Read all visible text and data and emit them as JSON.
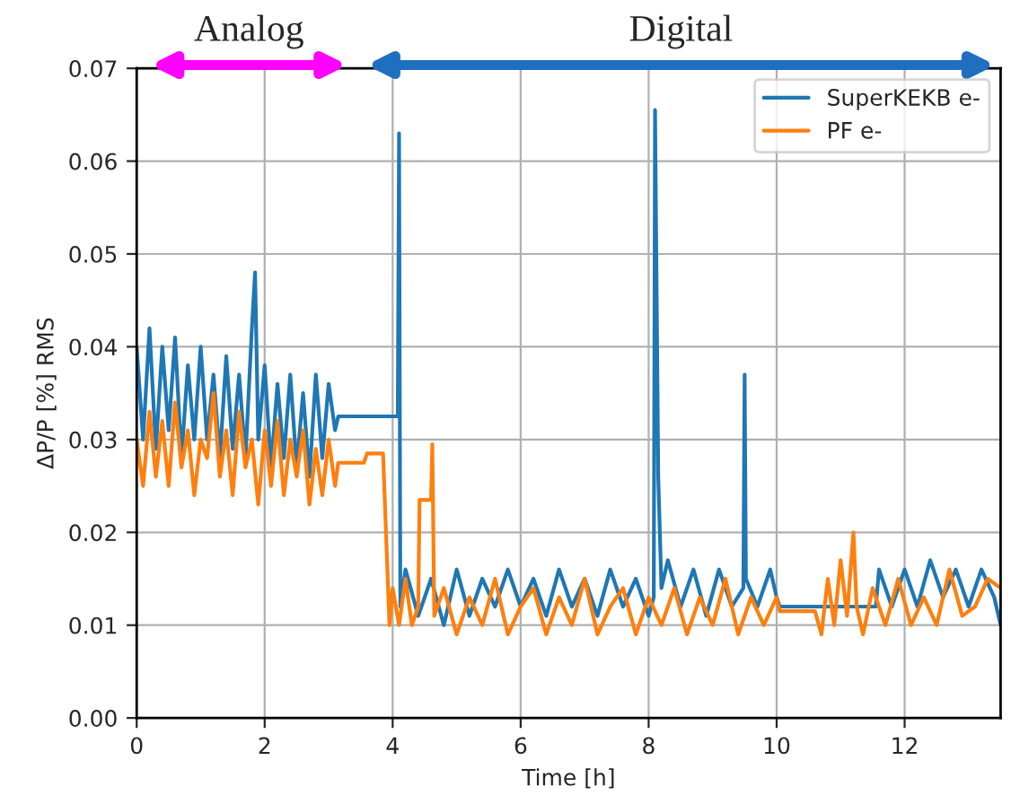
{
  "chart_data": {
    "type": "line",
    "xlabel": "Time [h]",
    "ylabel": "ΔP/P [%] RMS",
    "annotations": [
      "Analog",
      "Digital"
    ],
    "xlim": [
      0,
      13.5
    ],
    "xticks": [
      0,
      2,
      4,
      6,
      8,
      10,
      12
    ],
    "ylim": [
      0,
      0.07
    ],
    "yticks": [
      {
        "value": 0,
        "label": "0.00"
      },
      {
        "value": 0.01,
        "label": "0.01"
      },
      {
        "value": 0.02,
        "label": "0.02"
      },
      {
        "value": 0.03,
        "label": "0.03"
      },
      {
        "value": 0.04,
        "label": "0.04"
      },
      {
        "value": 0.05,
        "label": "0.05"
      },
      {
        "value": 0.06,
        "label": "0.06"
      },
      {
        "value": 0.07,
        "label": "0.07"
      }
    ],
    "grid": true,
    "legend": "top right",
    "series": [
      {
        "name": "SuperKEKB e-",
        "color": "#1f77b4",
        "x": [
          0,
          0.1,
          0.2,
          0.3,
          0.4,
          0.5,
          0.6,
          0.7,
          0.8,
          0.9,
          1.0,
          1.1,
          1.2,
          1.3,
          1.4,
          1.5,
          1.6,
          1.7,
          1.8,
          1.85,
          1.9,
          2.0,
          2.1,
          2.2,
          2.3,
          2.4,
          2.5,
          2.6,
          2.7,
          2.8,
          2.9,
          3.0,
          3.1,
          3.15,
          4.08,
          4.1,
          4.12,
          4.2,
          4.4,
          4.6,
          4.8,
          5.0,
          5.2,
          5.4,
          5.6,
          5.8,
          6.0,
          6.2,
          6.4,
          6.6,
          6.8,
          7.0,
          7.2,
          7.4,
          7.6,
          7.8,
          8.0,
          8.08,
          8.1,
          8.15,
          8.2,
          8.3,
          8.5,
          8.7,
          8.9,
          9.1,
          9.3,
          9.48,
          9.5,
          9.52,
          9.7,
          9.9,
          10.0,
          10.05,
          11.55,
          11.6,
          11.8,
          12.0,
          12.2,
          12.4,
          12.6,
          12.8,
          13.0,
          13.2,
          13.4,
          13.5
        ],
        "values": [
          0.04,
          0.03,
          0.042,
          0.029,
          0.04,
          0.031,
          0.041,
          0.028,
          0.038,
          0.03,
          0.04,
          0.03,
          0.037,
          0.028,
          0.039,
          0.029,
          0.037,
          0.028,
          0.042,
          0.048,
          0.03,
          0.038,
          0.027,
          0.036,
          0.028,
          0.037,
          0.027,
          0.035,
          0.026,
          0.037,
          0.028,
          0.036,
          0.031,
          0.0325,
          0.0325,
          0.063,
          0.012,
          0.016,
          0.011,
          0.015,
          0.01,
          0.016,
          0.011,
          0.015,
          0.012,
          0.016,
          0.012,
          0.015,
          0.011,
          0.016,
          0.012,
          0.015,
          0.011,
          0.016,
          0.012,
          0.015,
          0.011,
          0.013,
          0.0655,
          0.026,
          0.014,
          0.017,
          0.012,
          0.016,
          0.011,
          0.016,
          0.012,
          0.014,
          0.037,
          0.015,
          0.012,
          0.016,
          0.013,
          0.012,
          0.012,
          0.016,
          0.012,
          0.016,
          0.012,
          0.017,
          0.013,
          0.016,
          0.012,
          0.016,
          0.013,
          0.01
        ]
      },
      {
        "name": "PF e-",
        "color": "#ff7f0e",
        "x": [
          0,
          0.1,
          0.2,
          0.3,
          0.4,
          0.5,
          0.6,
          0.7,
          0.8,
          0.9,
          1.0,
          1.1,
          1.2,
          1.3,
          1.4,
          1.5,
          1.6,
          1.7,
          1.8,
          1.9,
          2.0,
          2.1,
          2.2,
          2.3,
          2.4,
          2.5,
          2.6,
          2.7,
          2.8,
          2.9,
          3.0,
          3.1,
          3.15,
          3.55,
          3.6,
          3.85,
          3.95,
          4.0,
          4.1,
          4.2,
          4.3,
          4.4,
          4.42,
          4.6,
          4.62,
          4.65,
          4.8,
          5.0,
          5.2,
          5.4,
          5.6,
          5.8,
          6.0,
          6.2,
          6.4,
          6.6,
          6.8,
          7.0,
          7.2,
          7.4,
          7.6,
          7.8,
          8.0,
          8.2,
          8.4,
          8.6,
          8.8,
          9.0,
          9.2,
          9.4,
          9.6,
          9.8,
          10.0,
          10.05,
          10.6,
          10.7,
          10.8,
          10.9,
          11.0,
          11.1,
          11.2,
          11.25,
          11.35,
          11.5,
          11.7,
          11.9,
          12.1,
          12.3,
          12.5,
          12.7,
          12.9,
          13.1,
          13.3,
          13.5
        ],
        "values": [
          0.03,
          0.025,
          0.033,
          0.026,
          0.032,
          0.025,
          0.034,
          0.027,
          0.031,
          0.024,
          0.03,
          0.028,
          0.035,
          0.026,
          0.031,
          0.024,
          0.033,
          0.027,
          0.03,
          0.023,
          0.031,
          0.025,
          0.032,
          0.024,
          0.03,
          0.026,
          0.031,
          0.023,
          0.029,
          0.024,
          0.03,
          0.025,
          0.0275,
          0.0275,
          0.0285,
          0.0285,
          0.01,
          0.014,
          0.01,
          0.015,
          0.01,
          0.012,
          0.0235,
          0.0235,
          0.0295,
          0.011,
          0.014,
          0.009,
          0.013,
          0.01,
          0.015,
          0.009,
          0.012,
          0.014,
          0.009,
          0.013,
          0.01,
          0.015,
          0.009,
          0.012,
          0.014,
          0.009,
          0.013,
          0.01,
          0.014,
          0.009,
          0.013,
          0.01,
          0.015,
          0.009,
          0.013,
          0.01,
          0.013,
          0.0115,
          0.0115,
          0.009,
          0.015,
          0.01,
          0.017,
          0.011,
          0.02,
          0.012,
          0.009,
          0.014,
          0.01,
          0.015,
          0.01,
          0.013,
          0.01,
          0.016,
          0.011,
          0.012,
          0.015,
          0.014
        ]
      }
    ]
  }
}
